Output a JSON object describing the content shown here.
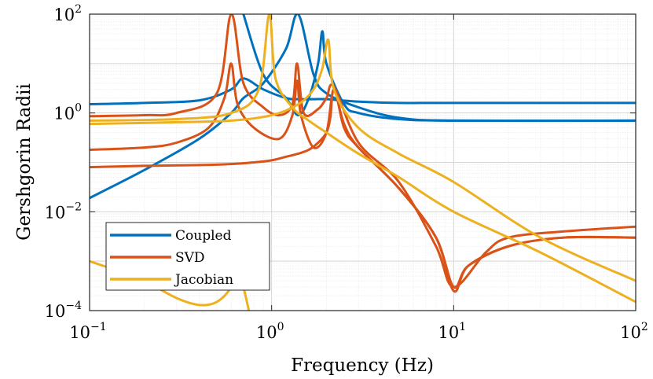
{
  "chart_data": {
    "type": "line",
    "xlabel": "Frequency (Hz)",
    "ylabel": "Gershgorin Radii",
    "xscale": "log",
    "yscale": "log",
    "xlim": [
      0.1,
      100
    ],
    "ylim": [
      0.0001,
      100
    ],
    "xticks": [
      {
        "value": 0.1,
        "base": "10",
        "exp": "−1"
      },
      {
        "value": 1,
        "base": "10",
        "exp": "0"
      },
      {
        "value": 10,
        "base": "10",
        "exp": "1"
      },
      {
        "value": 100,
        "base": "10",
        "exp": "2"
      }
    ],
    "yticks": [
      {
        "value": 0.0001,
        "base": "10",
        "exp": "−4"
      },
      {
        "value": 0.01,
        "base": "10",
        "exp": "−2"
      },
      {
        "value": 1,
        "base": "10",
        "exp": "0"
      },
      {
        "value": 100,
        "base": "10",
        "exp": "2"
      }
    ],
    "grid": true,
    "legend_position": "bottom-left",
    "legend": [
      {
        "name": "Coupled",
        "color": "#0072BD"
      },
      {
        "name": "SVD",
        "color": "#D95319"
      },
      {
        "name": "Jacobian",
        "color": "#EDB120"
      }
    ],
    "series": [
      {
        "name": "Coupled",
        "color": "#0072BD",
        "x": [
          0.1,
          0.2,
          0.4,
          0.6,
          0.7,
          0.9,
          1.2,
          1.4,
          1.7,
          2,
          3,
          5,
          10,
          100
        ],
        "y": [
          1.5,
          1.6,
          1.8,
          3.0,
          5.0,
          3.0,
          2.0,
          1.9,
          1.9,
          1.9,
          1.7,
          1.6,
          1.6,
          1.6
        ]
      },
      {
        "name": "Coupled",
        "color": "#0072BD",
        "x": [
          0.1,
          0.2,
          0.4,
          0.6,
          0.7,
          0.9,
          1.2,
          1.4,
          1.7,
          2,
          3,
          5,
          10,
          100
        ],
        "y": [
          0.019,
          0.07,
          0.3,
          1.0,
          2.0,
          4.0,
          20,
          100,
          6,
          2.5,
          1.3,
          0.8,
          0.7,
          0.7
        ]
      },
      {
        "name": "Coupled",
        "color": "#0072BD",
        "x": [
          0.7,
          0.9,
          1.2,
          1.4,
          1.6,
          1.8,
          1.9,
          2.0,
          2.5,
          3,
          5,
          10,
          100
        ],
        "y": [
          100,
          6,
          2.0,
          0.9,
          2.0,
          10,
          45,
          10,
          1.5,
          1.0,
          0.75,
          0.7,
          0.7
        ]
      },
      {
        "name": "SVD",
        "color": "#D95319",
        "x": [
          0.1,
          0.2,
          0.3,
          0.5,
          0.6,
          0.7,
          0.9,
          1.1,
          1.3,
          1.38,
          1.5,
          1.8,
          2.0,
          2.2,
          3,
          5,
          8,
          10,
          15,
          20,
          40,
          100
        ],
        "y": [
          0.86,
          0.9,
          1.0,
          2.5,
          100,
          4.0,
          1.3,
          0.9,
          1.5,
          10,
          1.0,
          1.2,
          2.0,
          3.4,
          0.25,
          0.04,
          0.002,
          0.0003,
          0.0015,
          0.003,
          0.004,
          0.005
        ]
      },
      {
        "name": "SVD",
        "color": "#D95319",
        "x": [
          0.1,
          0.2,
          0.3,
          0.45,
          0.55,
          0.6,
          0.65,
          0.8,
          1.1,
          1.3,
          1.38,
          1.45,
          1.7,
          2.0,
          2.2,
          2.5,
          3,
          5,
          8,
          10,
          12,
          20,
          40,
          100
        ],
        "y": [
          0.18,
          0.2,
          0.25,
          0.5,
          2.0,
          10,
          1.5,
          0.5,
          0.3,
          0.9,
          4.5,
          0.9,
          0.2,
          0.4,
          3.0,
          0.5,
          0.2,
          0.03,
          0.003,
          0.00025,
          0.0008,
          0.002,
          0.003,
          0.003
        ]
      },
      {
        "name": "SVD",
        "color": "#D95319",
        "x": [
          0.1,
          0.2,
          0.5,
          0.8,
          1.0,
          1.2,
          1.4,
          1.6,
          1.8,
          2.0,
          2.1,
          2.2,
          2.5,
          3,
          5,
          8,
          10,
          12,
          20,
          40,
          100
        ],
        "y": [
          0.08,
          0.085,
          0.09,
          0.1,
          0.11,
          0.13,
          0.15,
          0.18,
          0.25,
          0.4,
          0.8,
          3.0,
          0.6,
          0.2,
          0.03,
          0.003,
          0.0003,
          0.0008,
          0.002,
          0.003,
          0.003
        ]
      },
      {
        "name": "Jacobian",
        "color": "#EDB120",
        "x": [
          0.1,
          0.3,
          0.6,
          0.85,
          0.97,
          1.05,
          1.3,
          1.6,
          2.0,
          3,
          5,
          10,
          30,
          100
        ],
        "y": [
          0.7,
          0.75,
          1.0,
          3.0,
          100,
          5.0,
          1.3,
          0.7,
          0.4,
          0.15,
          0.05,
          0.01,
          0.0015,
          0.00015
        ]
      },
      {
        "name": "Jacobian",
        "color": "#EDB120",
        "x": [
          0.1,
          0.3,
          0.6,
          1.0,
          1.4,
          1.7,
          1.9,
          2.05,
          2.2,
          3,
          5,
          10,
          30,
          100
        ],
        "y": [
          0.6,
          0.65,
          0.7,
          0.9,
          1.5,
          3.0,
          8.0,
          30,
          3.0,
          0.5,
          0.15,
          0.04,
          0.003,
          0.0004
        ]
      },
      {
        "name": "Jacobian",
        "color": "#EDB120",
        "x": [
          0.1,
          0.15,
          0.2,
          0.3,
          0.4,
          0.5,
          0.6,
          0.65,
          0.7,
          0.75
        ],
        "y": [
          0.001,
          0.0006,
          0.0004,
          0.00018,
          0.00013,
          0.00015,
          0.0003,
          0.0008,
          0.0003,
          0.0001
        ]
      }
    ]
  }
}
